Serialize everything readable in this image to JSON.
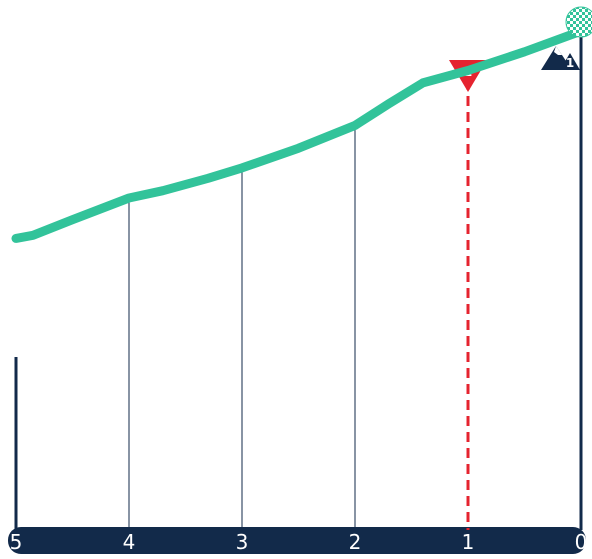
{
  "chart_data": {
    "type": "line",
    "x_axis": {
      "reversed": true,
      "xlim": [
        5,
        0
      ],
      "ticks": [
        5,
        4,
        3,
        2,
        1,
        0
      ],
      "tick_labels": [
        "5",
        "4",
        "3",
        "2",
        "1",
        "0"
      ]
    },
    "series": [
      {
        "points": [
          {
            "x": 5.0,
            "y": 0.0
          },
          {
            "x": 4.85,
            "y": 0.03
          },
          {
            "x": 4.5,
            "y": 0.18
          },
          {
            "x": 4.0,
            "y": 0.39
          },
          {
            "x": 3.7,
            "y": 0.46
          },
          {
            "x": 3.3,
            "y": 0.58
          },
          {
            "x": 3.0,
            "y": 0.68
          },
          {
            "x": 2.5,
            "y": 0.87
          },
          {
            "x": 2.0,
            "y": 1.09
          },
          {
            "x": 1.7,
            "y": 1.3
          },
          {
            "x": 1.4,
            "y": 1.5
          },
          {
            "x": 1.0,
            "y": 1.62
          },
          {
            "x": 0.5,
            "y": 1.8
          },
          {
            "x": 0.0,
            "y": 2.0
          }
        ]
      }
    ],
    "ylim": [
      -2.9,
      2.3
    ],
    "grid": false,
    "markers": [
      {
        "x": 1,
        "label": "1",
        "kind": "km-to-go",
        "color": "#e5232f"
      },
      {
        "x": 0,
        "label": "1",
        "kind": "summit-finish",
        "color": "#122a4a"
      }
    ],
    "colors": {
      "line": "#32c39a",
      "axis": "#122a4a",
      "guide": "#122a4a",
      "marker": "#e5232f",
      "flag_light": "#32c39a",
      "flag_dark": "#ffffff"
    }
  },
  "icons": {
    "km_marker": "red-triangle-flag-icon",
    "finish": "checkered-flag-icon",
    "climb": "mountain-category-icon"
  }
}
